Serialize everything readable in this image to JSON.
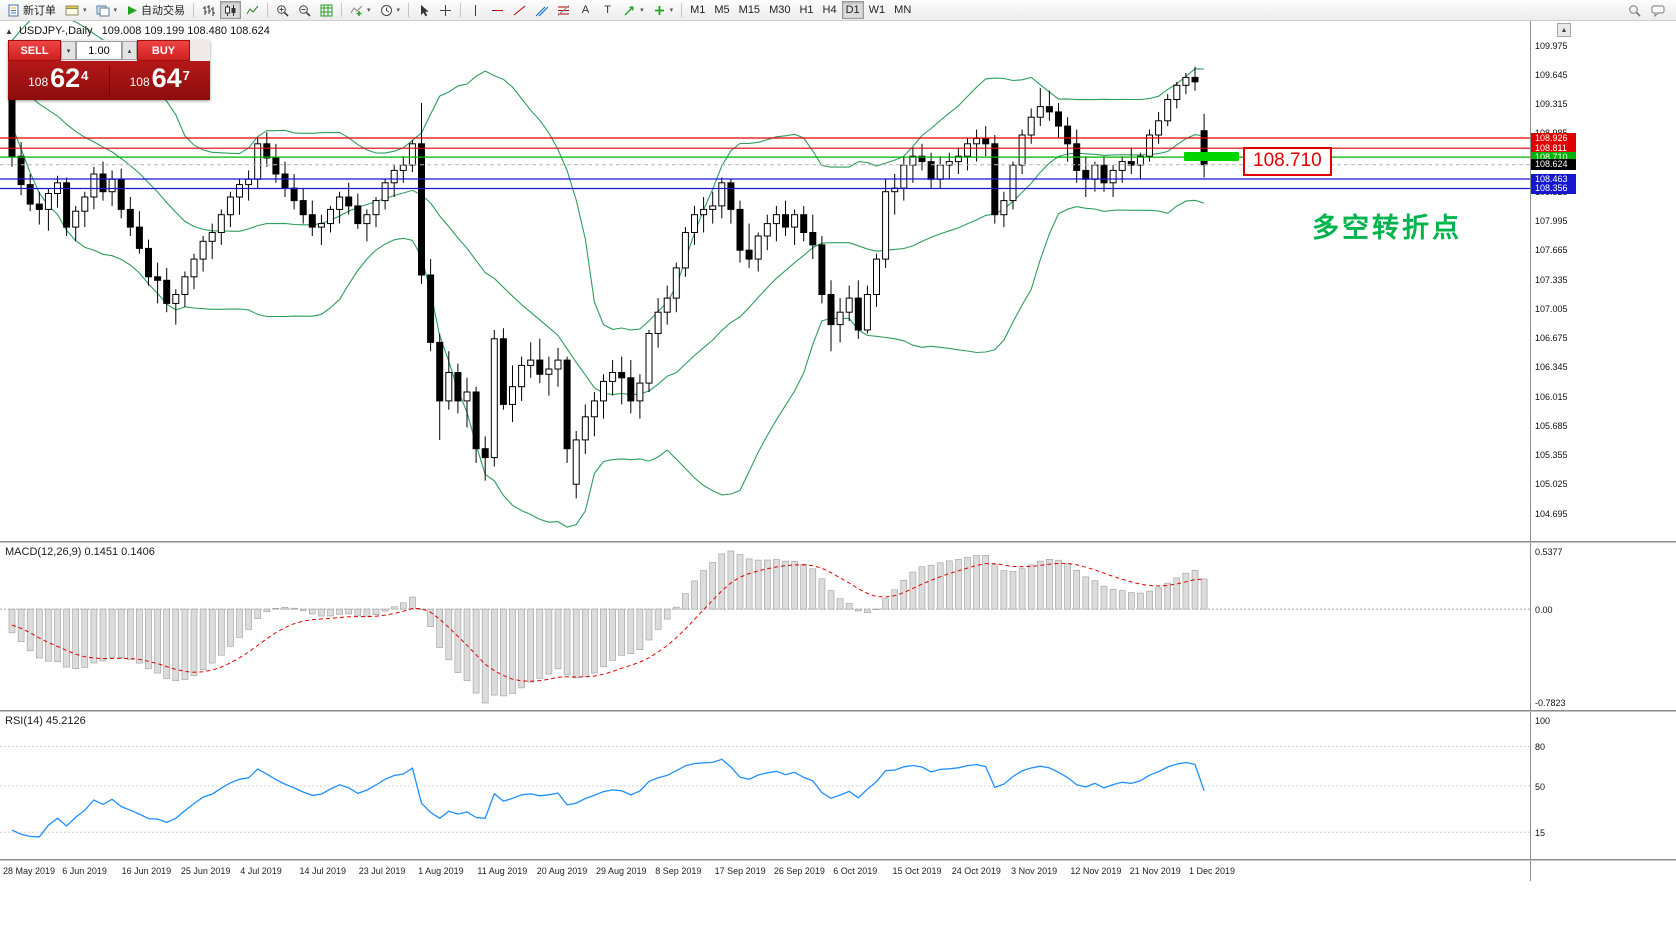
{
  "toolbar": {
    "new_order_label": "新订单",
    "auto_trading_label": "自动交易",
    "text_tool_label": "A",
    "label_tool_label": "T",
    "timeframes": [
      "M1",
      "M5",
      "M15",
      "M30",
      "H1",
      "H4",
      "D1",
      "W1",
      "MN"
    ],
    "active_timeframe": "D1"
  },
  "symbol_header": {
    "symbol": "USDJPY-,Daily",
    "ohlc": "109.008 109.199 108.480 108.624"
  },
  "trade_panel": {
    "sell_label": "SELL",
    "buy_label": "BUY",
    "volume": "1.00",
    "sell_price": {
      "prefix": "108",
      "big": "62",
      "sup": "4"
    },
    "buy_price": {
      "prefix": "108",
      "big": "64",
      "sup": "7"
    }
  },
  "annotations": {
    "price_callout": "108.710",
    "turning_point": "多空转折点"
  },
  "levels": [
    {
      "price": 108.926,
      "color": "#e10000"
    },
    {
      "price": 108.811,
      "color": "#e10000"
    },
    {
      "price": 108.71,
      "color": "#00b300"
    },
    {
      "price": 108.463,
      "color": "#1616cc"
    },
    {
      "price": 108.356,
      "color": "#1616cc"
    }
  ],
  "current_price": {
    "value": 108.624,
    "badge_color": "#000000"
  },
  "chart_data": {
    "type": "candlestick",
    "title": "USDJPY- Daily",
    "price_axis": {
      "min": 104.695,
      "max": 109.975,
      "step": 0.33
    },
    "x_labels": [
      "28 May 2019",
      "6 Jun 2019",
      "16 Jun 2019",
      "25 Jun 2019",
      "4 Jul 2019",
      "14 Jul 2019",
      "23 Jul 2019",
      "1 Aug 2019",
      "11 Aug 2019",
      "20 Aug 2019",
      "29 Aug 2019",
      "8 Sep 2019",
      "17 Sep 2019",
      "26 Sep 2019",
      "6 Oct 2019",
      "15 Oct 2019",
      "24 Oct 2019",
      "3 Nov 2019",
      "12 Nov 2019",
      "21 Nov 2019",
      "1 Dec 2019"
    ],
    "pre_history_closes": [
      109.9,
      109.85,
      109.8,
      109.75,
      109.7,
      109.75,
      109.8,
      109.7,
      109.6,
      109.55,
      109.5,
      109.55,
      109.6,
      109.5,
      109.45,
      109.5,
      109.4,
      109.45,
      109.35,
      109.4
    ],
    "ohlc": [
      [
        109.4,
        109.45,
        108.6,
        108.72
      ],
      [
        108.72,
        108.88,
        108.28,
        108.4
      ],
      [
        108.4,
        108.52,
        108.1,
        108.18
      ],
      [
        108.18,
        108.32,
        107.95,
        108.12
      ],
      [
        108.12,
        108.36,
        107.88,
        108.3
      ],
      [
        108.3,
        108.5,
        108.14,
        108.42
      ],
      [
        108.42,
        108.48,
        107.82,
        107.92
      ],
      [
        107.92,
        108.16,
        107.76,
        108.1
      ],
      [
        108.1,
        108.32,
        107.92,
        108.26
      ],
      [
        108.26,
        108.6,
        108.12,
        108.52
      ],
      [
        108.52,
        108.66,
        108.22,
        108.32
      ],
      [
        108.32,
        108.56,
        108.16,
        108.46
      ],
      [
        108.46,
        108.58,
        108.02,
        108.12
      ],
      [
        108.12,
        108.26,
        107.82,
        107.92
      ],
      [
        107.92,
        108.1,
        107.62,
        107.68
      ],
      [
        107.68,
        107.78,
        107.26,
        107.36
      ],
      [
        107.36,
        107.52,
        107.06,
        107.32
      ],
      [
        107.32,
        107.46,
        106.96,
        107.06
      ],
      [
        107.06,
        107.22,
        106.82,
        107.16
      ],
      [
        107.16,
        107.42,
        107.02,
        107.36
      ],
      [
        107.36,
        107.62,
        107.22,
        107.56
      ],
      [
        107.56,
        107.82,
        107.42,
        107.76
      ],
      [
        107.76,
        107.96,
        107.56,
        107.86
      ],
      [
        107.86,
        108.12,
        107.72,
        108.06
      ],
      [
        108.06,
        108.32,
        107.92,
        108.26
      ],
      [
        108.26,
        108.46,
        108.06,
        108.4
      ],
      [
        108.4,
        108.56,
        108.22,
        108.46
      ],
      [
        108.46,
        108.92,
        108.36,
        108.86
      ],
      [
        108.86,
        108.99,
        108.6,
        108.7
      ],
      [
        108.7,
        108.86,
        108.42,
        108.52
      ],
      [
        108.52,
        108.66,
        108.26,
        108.36
      ],
      [
        108.36,
        108.52,
        108.12,
        108.22
      ],
      [
        108.22,
        108.36,
        107.96,
        108.06
      ],
      [
        108.06,
        108.22,
        107.82,
        107.92
      ],
      [
        107.92,
        108.06,
        107.72,
        107.96
      ],
      [
        107.96,
        108.16,
        107.86,
        108.12
      ],
      [
        108.12,
        108.32,
        107.96,
        108.26
      ],
      [
        108.26,
        108.42,
        108.06,
        108.16
      ],
      [
        108.16,
        108.3,
        107.9,
        107.96
      ],
      [
        107.96,
        108.12,
        107.76,
        108.06
      ],
      [
        108.06,
        108.26,
        107.92,
        108.22
      ],
      [
        108.22,
        108.46,
        108.12,
        108.42
      ],
      [
        108.42,
        108.62,
        108.26,
        108.56
      ],
      [
        108.56,
        108.72,
        108.42,
        108.62
      ],
      [
        108.62,
        108.9,
        108.54,
        108.86
      ],
      [
        108.86,
        109.32,
        107.28,
        107.38
      ],
      [
        107.38,
        107.56,
        106.52,
        106.62
      ],
      [
        106.62,
        106.72,
        105.52,
        105.96
      ],
      [
        105.96,
        106.52,
        105.86,
        106.28
      ],
      [
        106.28,
        106.38,
        105.82,
        105.96
      ],
      [
        105.96,
        106.22,
        105.66,
        106.06
      ],
      [
        106.06,
        106.12,
        105.26,
        105.42
      ],
      [
        105.42,
        105.56,
        105.06,
        105.32
      ],
      [
        105.32,
        106.76,
        105.22,
        106.66
      ],
      [
        106.66,
        106.78,
        105.86,
        105.92
      ],
      [
        105.92,
        106.36,
        105.72,
        106.12
      ],
      [
        106.12,
        106.46,
        105.96,
        106.36
      ],
      [
        106.36,
        106.62,
        106.22,
        106.42
      ],
      [
        106.42,
        106.66,
        106.16,
        106.26
      ],
      [
        106.26,
        106.46,
        106.02,
        106.32
      ],
      [
        106.32,
        106.56,
        106.12,
        106.42
      ],
      [
        106.42,
        106.46,
        105.26,
        105.42
      ],
      [
        105.02,
        105.62,
        104.86,
        105.52
      ],
      [
        105.52,
        105.92,
        105.36,
        105.78
      ],
      [
        105.78,
        106.06,
        105.56,
        105.96
      ],
      [
        105.96,
        106.26,
        105.76,
        106.18
      ],
      [
        106.18,
        106.42,
        106.02,
        106.28
      ],
      [
        106.28,
        106.46,
        105.92,
        106.22
      ],
      [
        106.22,
        106.42,
        105.82,
        105.96
      ],
      [
        105.96,
        106.26,
        105.76,
        106.16
      ],
      [
        106.16,
        106.76,
        106.06,
        106.72
      ],
      [
        106.72,
        107.12,
        106.56,
        106.96
      ],
      [
        106.96,
        107.26,
        106.82,
        107.12
      ],
      [
        107.12,
        107.52,
        106.96,
        107.46
      ],
      [
        107.46,
        107.92,
        107.36,
        107.86
      ],
      [
        107.86,
        108.16,
        107.72,
        108.06
      ],
      [
        108.06,
        108.26,
        107.86,
        108.12
      ],
      [
        108.12,
        108.32,
        107.96,
        108.16
      ],
      [
        108.16,
        108.48,
        108.02,
        108.42
      ],
      [
        108.42,
        108.46,
        107.96,
        108.12
      ],
      [
        108.12,
        108.22,
        107.52,
        107.66
      ],
      [
        107.66,
        107.96,
        107.46,
        107.56
      ],
      [
        107.56,
        107.86,
        107.42,
        107.82
      ],
      [
        107.82,
        108.06,
        107.66,
        107.96
      ],
      [
        107.96,
        108.16,
        107.76,
        108.06
      ],
      [
        108.06,
        108.22,
        107.82,
        107.92
      ],
      [
        107.92,
        108.12,
        107.72,
        108.06
      ],
      [
        108.06,
        108.16,
        107.76,
        107.86
      ],
      [
        107.86,
        108.06,
        107.56,
        107.72
      ],
      [
        107.72,
        107.82,
        107.06,
        107.16
      ],
      [
        107.16,
        107.32,
        106.52,
        106.82
      ],
      [
        106.82,
        107.12,
        106.62,
        106.96
      ],
      [
        106.96,
        107.26,
        106.86,
        107.12
      ],
      [
        107.12,
        107.32,
        106.66,
        106.76
      ],
      [
        106.76,
        107.26,
        106.72,
        107.16
      ],
      [
        107.16,
        107.62,
        107.02,
        107.56
      ],
      [
        107.56,
        108.46,
        107.46,
        108.32
      ],
      [
        108.32,
        108.52,
        108.06,
        108.36
      ],
      [
        108.36,
        108.72,
        108.22,
        108.62
      ],
      [
        108.62,
        108.82,
        108.42,
        108.72
      ],
      [
        108.72,
        108.86,
        108.56,
        108.66
      ],
      [
        108.66,
        108.76,
        108.36,
        108.46
      ],
      [
        108.46,
        108.72,
        108.36,
        108.62
      ],
      [
        108.62,
        108.76,
        108.46,
        108.66
      ],
      [
        108.66,
        108.82,
        108.52,
        108.72
      ],
      [
        108.72,
        108.92,
        108.56,
        108.86
      ],
      [
        108.86,
        109.02,
        108.66,
        108.92
      ],
      [
        108.92,
        109.06,
        108.72,
        108.86
      ],
      [
        108.86,
        108.96,
        107.96,
        108.06
      ],
      [
        108.06,
        108.32,
        107.92,
        108.22
      ],
      [
        108.22,
        108.66,
        108.12,
        108.62
      ],
      [
        108.62,
        109.02,
        108.52,
        108.96
      ],
      [
        108.96,
        109.26,
        108.86,
        109.16
      ],
      [
        109.16,
        109.49,
        109.06,
        109.28
      ],
      [
        109.28,
        109.46,
        109.12,
        109.22
      ],
      [
        109.22,
        109.32,
        108.92,
        109.06
      ],
      [
        109.06,
        109.16,
        108.66,
        108.86
      ],
      [
        108.86,
        109.02,
        108.42,
        108.56
      ],
      [
        108.56,
        108.72,
        108.26,
        108.46
      ],
      [
        108.46,
        108.66,
        108.32,
        108.62
      ],
      [
        108.62,
        108.72,
        108.32,
        108.42
      ],
      [
        108.42,
        108.62,
        108.26,
        108.56
      ],
      [
        108.56,
        108.72,
        108.42,
        108.66
      ],
      [
        108.66,
        108.82,
        108.52,
        108.62
      ],
      [
        108.62,
        108.76,
        108.46,
        108.72
      ],
      [
        108.72,
        109.02,
        108.66,
        108.96
      ],
      [
        108.96,
        109.22,
        108.86,
        109.12
      ],
      [
        109.12,
        109.42,
        109.06,
        109.36
      ],
      [
        109.36,
        109.56,
        109.26,
        109.52
      ],
      [
        109.52,
        109.66,
        109.42,
        109.61
      ],
      [
        109.61,
        109.73,
        109.46,
        109.56
      ],
      [
        109.008,
        109.199,
        108.48,
        108.624
      ]
    ],
    "indicators": {
      "bollinger": {
        "period": 20,
        "deviations": 2,
        "color": "#2e9e5b"
      },
      "macd": {
        "header": "MACD(12,26,9) 0.1451 0.1406",
        "fast": 12,
        "slow": 26,
        "signal": 9,
        "axis_max": "0.5377",
        "axis_zero": "0.00",
        "axis_min": "-0.7823"
      },
      "rsi": {
        "header": "RSI(14) 45.2126",
        "period": 14,
        "axis_ticks": [
          "100",
          "80",
          "50",
          "15"
        ],
        "levels": [
          80,
          50,
          15
        ]
      }
    }
  }
}
